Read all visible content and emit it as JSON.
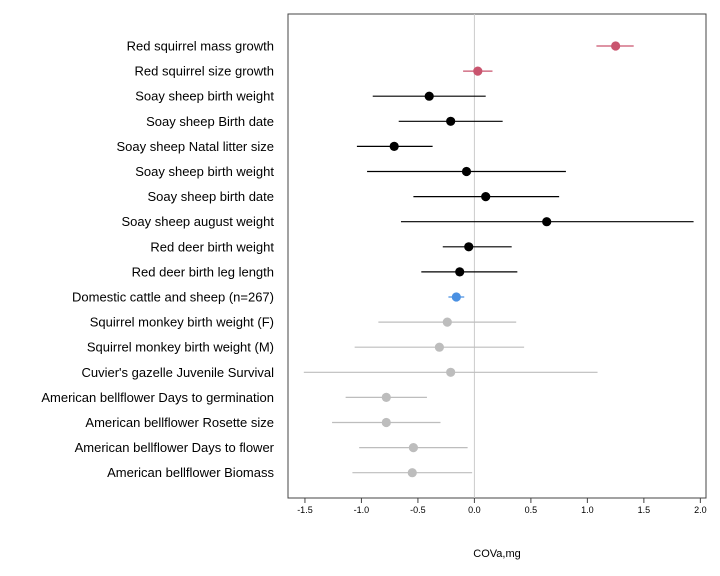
{
  "chart_data": {
    "type": "scatter",
    "subtype": "forest-plot",
    "title": "",
    "xlabel": "COVa,mg",
    "ylabel": "",
    "xlim": [
      -1.65,
      2.05
    ],
    "x_ticks": [
      -1.5,
      -1.0,
      -0.5,
      0.0,
      0.5,
      1.0,
      1.5,
      2.0
    ],
    "x_tick_labels": [
      "-1.5",
      "-1.0",
      "-0.5",
      "0.0",
      "0.5",
      "1.0",
      "1.5",
      "2.0"
    ],
    "reference_line_x": 0,
    "grid": false,
    "legend": "none",
    "rows": [
      {
        "label": "Red squirrel mass growth",
        "estimate": 1.25,
        "lower": 1.08,
        "upper": 1.41,
        "color": "#c9546e"
      },
      {
        "label": "Red squirrel size growth",
        "estimate": 0.03,
        "lower": -0.1,
        "upper": 0.16,
        "color": "#c9546e"
      },
      {
        "label": "Soay sheep birth weight",
        "estimate": -0.4,
        "lower": -0.9,
        "upper": 0.1,
        "color": "#000000"
      },
      {
        "label": "Soay sheep Birth date",
        "estimate": -0.21,
        "lower": -0.67,
        "upper": 0.25,
        "color": "#000000"
      },
      {
        "label": "Soay sheep Natal litter size",
        "estimate": -0.71,
        "lower": -1.04,
        "upper": -0.37,
        "color": "#000000"
      },
      {
        "label": "Soay sheep birth weight",
        "estimate": -0.07,
        "lower": -0.95,
        "upper": 0.81,
        "color": "#000000"
      },
      {
        "label": "Soay sheep birth date",
        "estimate": 0.1,
        "lower": -0.54,
        "upper": 0.75,
        "color": "#000000"
      },
      {
        "label": "Soay sheep august weight",
        "estimate": 0.64,
        "lower": -0.65,
        "upper": 1.94,
        "color": "#000000"
      },
      {
        "label": "Red deer birth weight",
        "estimate": -0.05,
        "lower": -0.28,
        "upper": 0.33,
        "color": "#000000"
      },
      {
        "label": "Red deer birth leg length",
        "estimate": -0.13,
        "lower": -0.47,
        "upper": 0.38,
        "color": "#000000"
      },
      {
        "label": "Domestic cattle and sheep (n=267)",
        "estimate": -0.16,
        "lower": -0.23,
        "upper": -0.09,
        "color": "#4a90e2"
      },
      {
        "label": "Squirrel monkey birth weight (F)",
        "estimate": -0.24,
        "lower": -0.85,
        "upper": 0.37,
        "color": "#bdbdbd"
      },
      {
        "label": "Squirrel monkey birth weight (M)",
        "estimate": -0.31,
        "lower": -1.06,
        "upper": 0.44,
        "color": "#bdbdbd"
      },
      {
        "label": "Cuvier's gazelle Juvenile Survival",
        "estimate": -0.21,
        "lower": -1.51,
        "upper": 1.09,
        "color": "#bdbdbd"
      },
      {
        "label": "American bellflower Days to germination",
        "estimate": -0.78,
        "lower": -1.14,
        "upper": -0.42,
        "color": "#bdbdbd"
      },
      {
        "label": "American bellflower Rosette size",
        "estimate": -0.78,
        "lower": -1.26,
        "upper": -0.3,
        "color": "#bdbdbd"
      },
      {
        "label": "American bellflower Days to flower",
        "estimate": -0.54,
        "lower": -1.02,
        "upper": -0.06,
        "color": "#bdbdbd"
      },
      {
        "label": "American bellflower Biomass",
        "estimate": -0.55,
        "lower": -1.08,
        "upper": -0.02,
        "color": "#bdbdbd"
      }
    ]
  }
}
